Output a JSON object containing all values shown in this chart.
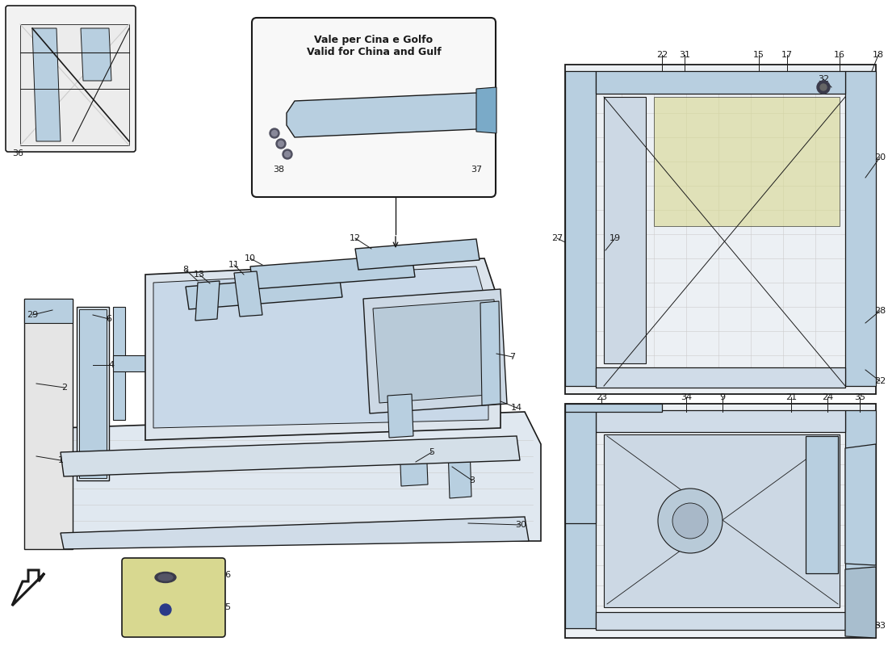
{
  "bg_color": "#ffffff",
  "light_blue": "#b8cfe0",
  "mid_blue": "#7aaac8",
  "dark": "#1a1a1a",
  "gray": "#888888",
  "light_gray": "#cccccc",
  "yellow_green": "#d8d890",
  "callout_title1": "Vale per Cina e Golfo",
  "callout_title2": "Valid for China and Gulf",
  "fig_width": 11.0,
  "fig_height": 8.0
}
